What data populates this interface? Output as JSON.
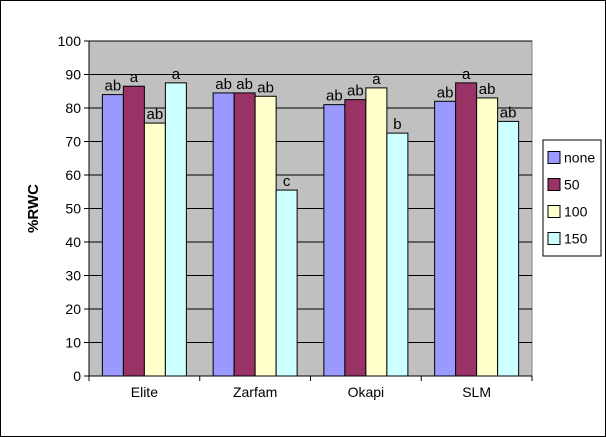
{
  "chart_data": {
    "type": "bar",
    "title": "",
    "xlabel": "",
    "ylabel": "%RWC",
    "ylim": [
      0,
      100
    ],
    "yticks": [
      0,
      10,
      20,
      30,
      40,
      50,
      60,
      70,
      80,
      90,
      100
    ],
    "grid": true,
    "legend_position": "right",
    "plot_background": "#c0c0c0",
    "categories": [
      "Elite",
      "Zarfam",
      "Okapi",
      "SLM"
    ],
    "series": [
      {
        "name": "none",
        "color": "#9999ff",
        "values": [
          84,
          84.5,
          81,
          82
        ],
        "labels": [
          "ab",
          "ab",
          "ab",
          "ab"
        ]
      },
      {
        "name": "50",
        "color": "#993366",
        "values": [
          86.5,
          84.5,
          82.5,
          87.5
        ],
        "labels": [
          "a",
          "ab",
          "ab",
          "a"
        ]
      },
      {
        "name": "100",
        "color": "#ffffcc",
        "values": [
          75.5,
          83.5,
          86,
          83
        ],
        "labels": [
          "ab",
          "ab",
          "a",
          "ab"
        ]
      },
      {
        "name": "150",
        "color": "#ccffff",
        "values": [
          87.5,
          55.5,
          72.5,
          76
        ],
        "labels": [
          "a",
          "c",
          "b",
          "ab"
        ]
      }
    ]
  }
}
